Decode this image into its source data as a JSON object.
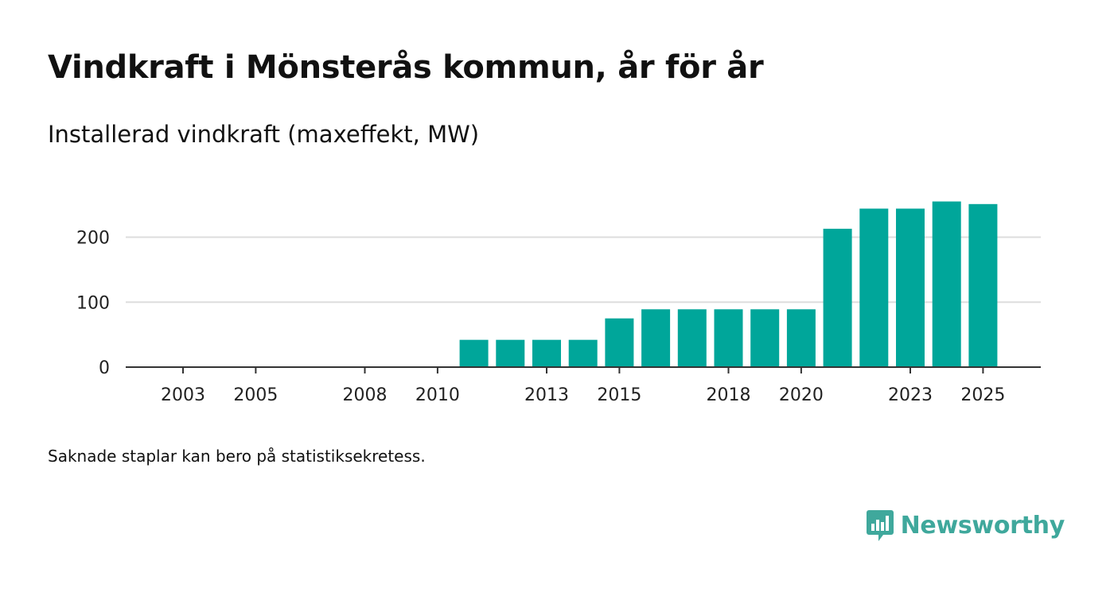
{
  "header": {
    "title": "Vindkraft i Mönsterås kommun, år för år",
    "subtitle": "Installerad vindkraft (maxeffekt, MW)"
  },
  "footer": {
    "note": "Saknade staplar kan bero på statistiksekretess.",
    "brand": "Newsworthy",
    "logo_icon": "bar-chart-speech-bubble-icon"
  },
  "colors": {
    "bar": "#00a69a",
    "grid": "#dddddd",
    "axis": "#333333",
    "brand": "#3fa89c"
  },
  "chart_data": {
    "type": "bar",
    "title": "Vindkraft i Mönsterås kommun, år för år",
    "subtitle": "Installerad vindkraft (maxeffekt, MW)",
    "xlabel": "",
    "ylabel": "",
    "categories": [
      "2003",
      "2004",
      "2005",
      "2006",
      "2007",
      "2008",
      "2009",
      "2010",
      "2011",
      "2012",
      "2013",
      "2014",
      "2015",
      "2016",
      "2017",
      "2018",
      "2019",
      "2020",
      "2021",
      "2022",
      "2023",
      "2024",
      "2025"
    ],
    "values": [
      0,
      0,
      0,
      0,
      0,
      0,
      0,
      0,
      42,
      42,
      42,
      42,
      75,
      89,
      89,
      89,
      89,
      89,
      213,
      244,
      244,
      255,
      251
    ],
    "x_tick_labels": [
      "2003",
      "2005",
      "2008",
      "2010",
      "2013",
      "2015",
      "2018",
      "2020",
      "2023",
      "2025"
    ],
    "y_ticks": [
      0,
      100,
      200
    ],
    "ylim": [
      0,
      255
    ],
    "grid": true,
    "legend": "none"
  }
}
